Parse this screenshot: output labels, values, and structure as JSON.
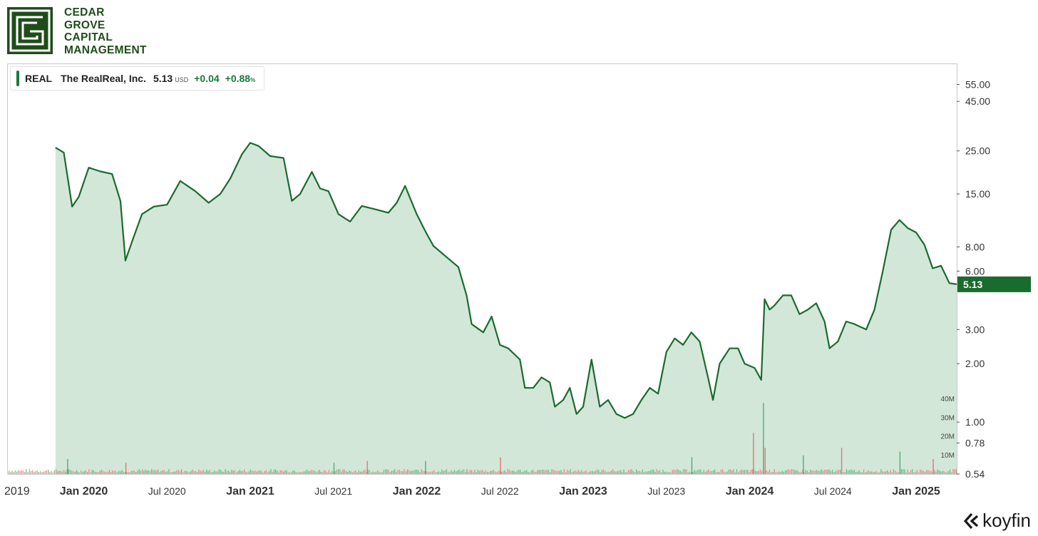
{
  "brand": {
    "name_lines": [
      "CEDAR",
      "GROVE",
      "CAPITAL",
      "MANAGEMENT"
    ],
    "color": "#1f4d1a"
  },
  "legend": {
    "ticker": "REAL",
    "name": "The RealReal, Inc.",
    "price": "5.13",
    "currency": "USD",
    "change": "+0.04",
    "change_pct": "+0.88",
    "pct_symbol": "%"
  },
  "watermark": "koyfin",
  "chart_data": {
    "type": "area",
    "title": "REAL The RealReal, Inc.",
    "scale": "log",
    "ylim": [
      0.54,
      70
    ],
    "y_ticks": [
      "55.00",
      "45.00",
      "25.00",
      "15.00",
      "8.00",
      "6.00",
      "3.00",
      "2.00",
      "1.00",
      "0.78",
      "0.54"
    ],
    "last_value_label": "5.13",
    "x_ticks": [
      "2019",
      "Jan 2020",
      "Jul 2020",
      "Jan 2021",
      "Jul 2021",
      "Jan 2022",
      "Jul 2022",
      "Jan 2023",
      "Jul 2023",
      "Jan 2024",
      "Jul 2024",
      "Jan 2025"
    ],
    "x_tick_dates": [
      2019.83,
      2020.0,
      2020.5,
      2021.0,
      2021.5,
      2022.0,
      2022.5,
      2023.0,
      2023.5,
      2024.0,
      2024.5,
      2025.0
    ],
    "x_range": [
      2019.83,
      2025.38
    ],
    "series": [
      {
        "name": "REAL price (USD)",
        "color": "#1a6b2e",
        "fill": "#d3e7d9",
        "points": [
          [
            2019.83,
            26.0
          ],
          [
            2019.88,
            24.5
          ],
          [
            2019.93,
            12.9
          ],
          [
            2019.97,
            14.5
          ],
          [
            2020.03,
            20.5
          ],
          [
            2020.1,
            19.6
          ],
          [
            2020.17,
            19.0
          ],
          [
            2020.22,
            13.8
          ],
          [
            2020.25,
            6.8
          ],
          [
            2020.3,
            9.0
          ],
          [
            2020.35,
            11.8
          ],
          [
            2020.42,
            12.9
          ],
          [
            2020.5,
            13.2
          ],
          [
            2020.58,
            17.5
          ],
          [
            2020.67,
            15.5
          ],
          [
            2020.75,
            13.5
          ],
          [
            2020.82,
            15.0
          ],
          [
            2020.88,
            18.0
          ],
          [
            2020.95,
            24.0
          ],
          [
            2021.0,
            27.5
          ],
          [
            2021.05,
            26.5
          ],
          [
            2021.12,
            23.5
          ],
          [
            2021.2,
            23.0
          ],
          [
            2021.25,
            13.8
          ],
          [
            2021.3,
            15.0
          ],
          [
            2021.37,
            19.5
          ],
          [
            2021.42,
            16.0
          ],
          [
            2021.47,
            15.5
          ],
          [
            2021.53,
            11.8
          ],
          [
            2021.6,
            10.8
          ],
          [
            2021.67,
            13.0
          ],
          [
            2021.75,
            12.5
          ],
          [
            2021.83,
            12.0
          ],
          [
            2021.88,
            13.5
          ],
          [
            2021.93,
            16.5
          ],
          [
            2022.0,
            11.8
          ],
          [
            2022.05,
            9.7
          ],
          [
            2022.1,
            8.1
          ],
          [
            2022.17,
            7.2
          ],
          [
            2022.25,
            6.3
          ],
          [
            2022.3,
            4.5
          ],
          [
            2022.33,
            3.2
          ],
          [
            2022.4,
            2.9
          ],
          [
            2022.45,
            3.5
          ],
          [
            2022.5,
            2.5
          ],
          [
            2022.55,
            2.4
          ],
          [
            2022.62,
            2.1
          ],
          [
            2022.65,
            1.5
          ],
          [
            2022.7,
            1.5
          ],
          [
            2022.75,
            1.7
          ],
          [
            2022.8,
            1.6
          ],
          [
            2022.83,
            1.2
          ],
          [
            2022.88,
            1.3
          ],
          [
            2022.92,
            1.5
          ],
          [
            2022.96,
            1.1
          ],
          [
            2023.0,
            1.2
          ],
          [
            2023.05,
            2.1
          ],
          [
            2023.1,
            1.2
          ],
          [
            2023.15,
            1.3
          ],
          [
            2023.2,
            1.1
          ],
          [
            2023.25,
            1.05
          ],
          [
            2023.3,
            1.1
          ],
          [
            2023.35,
            1.3
          ],
          [
            2023.4,
            1.5
          ],
          [
            2023.45,
            1.4
          ],
          [
            2023.5,
            2.3
          ],
          [
            2023.55,
            2.7
          ],
          [
            2023.6,
            2.5
          ],
          [
            2023.65,
            2.9
          ],
          [
            2023.7,
            2.6
          ],
          [
            2023.75,
            1.7
          ],
          [
            2023.78,
            1.3
          ],
          [
            2023.82,
            2.0
          ],
          [
            2023.88,
            2.4
          ],
          [
            2023.93,
            2.4
          ],
          [
            2023.97,
            2.0
          ],
          [
            2024.03,
            1.9
          ],
          [
            2024.07,
            1.65
          ],
          [
            2024.09,
            4.3
          ],
          [
            2024.12,
            3.8
          ],
          [
            2024.15,
            4.0
          ],
          [
            2024.2,
            4.5
          ],
          [
            2024.25,
            4.5
          ],
          [
            2024.3,
            3.6
          ],
          [
            2024.35,
            3.8
          ],
          [
            2024.4,
            4.1
          ],
          [
            2024.45,
            3.3
          ],
          [
            2024.48,
            2.4
          ],
          [
            2024.53,
            2.6
          ],
          [
            2024.58,
            3.3
          ],
          [
            2024.63,
            3.2
          ],
          [
            2024.7,
            3.0
          ],
          [
            2024.75,
            3.8
          ],
          [
            2024.8,
            6.0
          ],
          [
            2024.85,
            9.8
          ],
          [
            2024.9,
            11.0
          ],
          [
            2024.95,
            10.0
          ],
          [
            2025.0,
            9.5
          ],
          [
            2025.05,
            8.2
          ],
          [
            2025.1,
            6.2
          ],
          [
            2025.15,
            6.4
          ],
          [
            2025.2,
            5.2
          ],
          [
            2025.25,
            5.13
          ]
        ]
      }
    ],
    "volume": {
      "name": "Volume",
      "ticks": [
        "40M",
        "30M",
        "20M",
        "10M"
      ],
      "ylim": [
        0,
        42
      ],
      "unit": "M",
      "up_color": "#4caf6e",
      "down_color": "#e57373",
      "bars": [
        [
          2019.9,
          8
        ],
        [
          2020.25,
          6
        ],
        [
          2021.5,
          6
        ],
        [
          2021.7,
          7
        ],
        [
          2022.05,
          7
        ],
        [
          2022.5,
          9
        ],
        [
          2023.65,
          9
        ],
        [
          2024.02,
          22
        ],
        [
          2024.08,
          38
        ],
        [
          2024.09,
          14
        ],
        [
          2024.32,
          10
        ],
        [
          2024.55,
          14
        ],
        [
          2024.9,
          12
        ],
        [
          2025.1,
          8
        ]
      ]
    }
  }
}
